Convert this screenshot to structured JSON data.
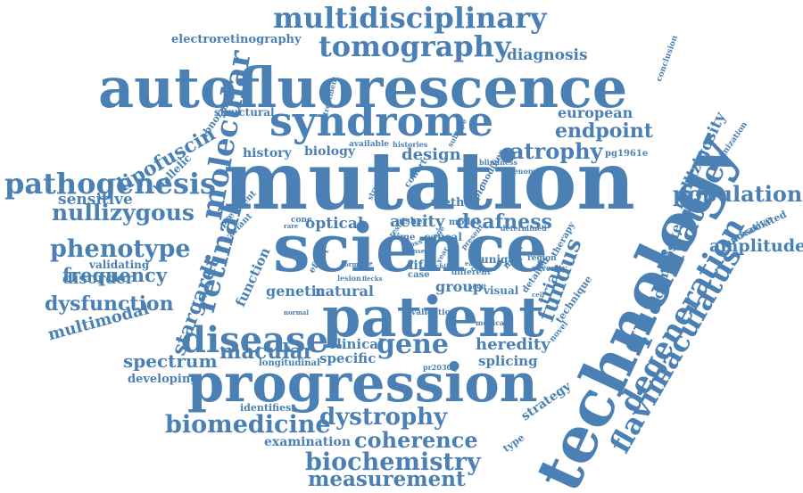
{
  "colors": {
    "word": "#4a80b3",
    "background": "#ffffff"
  },
  "words": [
    "multidisciplinary",
    "electroretinography",
    "tomography",
    "diagnosis",
    "autofluorescence",
    "syndrome",
    "endpoint",
    "european",
    "structural",
    "treatment",
    "conclusion",
    "abnormal",
    "lipofuscin",
    "biallelic",
    "molecular",
    "history",
    "biology",
    "design",
    "atrophy",
    "pg1961e",
    "nullizigosity",
    "optimization",
    "technology",
    "mutation",
    "pathogenesis",
    "sensitive",
    "nullizygous",
    "population",
    "science",
    "phenotype",
    "frequency",
    "validating",
    "retinal",
    "optical",
    "acuity",
    "deafness",
    "quantitative",
    "innovative",
    "associated",
    "amplitude",
    "patient",
    "function",
    "genetic",
    "natural",
    "group",
    "visual",
    "disease",
    "composite",
    "fundus",
    "dysfunction",
    "multimodal",
    "stargardt",
    "disorder",
    "macular",
    "clinical",
    "gene",
    "heredity",
    "degeneration",
    "flavimaculatus",
    "spectrum",
    "longitudinal",
    "specific",
    "splicing",
    "developing",
    "progression",
    "biomedicine",
    "dystrophy",
    "strategy",
    "examination",
    "coherence",
    "biochemistry",
    "measurement",
    "identifies",
    "available",
    "histories",
    "subtype",
    "blindness",
    "cohort",
    "topic",
    "method",
    "modifier",
    "genomic",
    "structure",
    "prevalent",
    "cone",
    "usher",
    "model",
    "variant",
    "rare",
    "time",
    "causal",
    "effect",
    "unique",
    "region",
    "severity",
    "most",
    "life",
    "case",
    "different",
    "detailed",
    "therapy",
    "medical",
    "technique",
    "novel",
    "validation",
    "pr2030q",
    "normal",
    "determined",
    "type",
    "trial",
    "result",
    "present",
    "year",
    "stage",
    "loss",
    "form",
    "onset",
    "early",
    "late",
    "child",
    "adult",
    "eye",
    "lesion",
    "flecks",
    "central",
    "cell",
    "layer"
  ]
}
